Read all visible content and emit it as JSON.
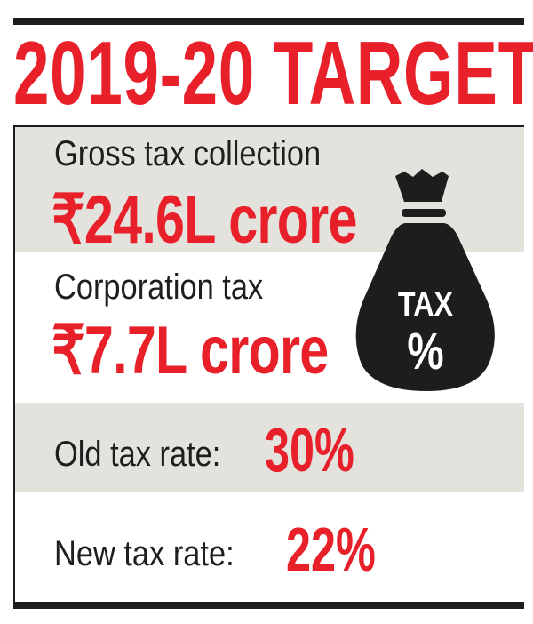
{
  "title": "2019-20 TARGET",
  "colors": {
    "accent_red": "#e8202a",
    "panel_gray": "#e4e2dd",
    "ink": "#1d1d1d"
  },
  "gross": {
    "label": "Gross tax collection",
    "value": "₹24.6L crore"
  },
  "corporation": {
    "label": "Corporation tax",
    "value": "₹7.7L crore"
  },
  "old_rate": {
    "label": "Old tax rate:",
    "value": "30%"
  },
  "new_rate": {
    "label": "New tax rate:",
    "value": "22%"
  },
  "icon": {
    "name": "money-bag-icon",
    "line1": "TAX",
    "line2": "%"
  }
}
